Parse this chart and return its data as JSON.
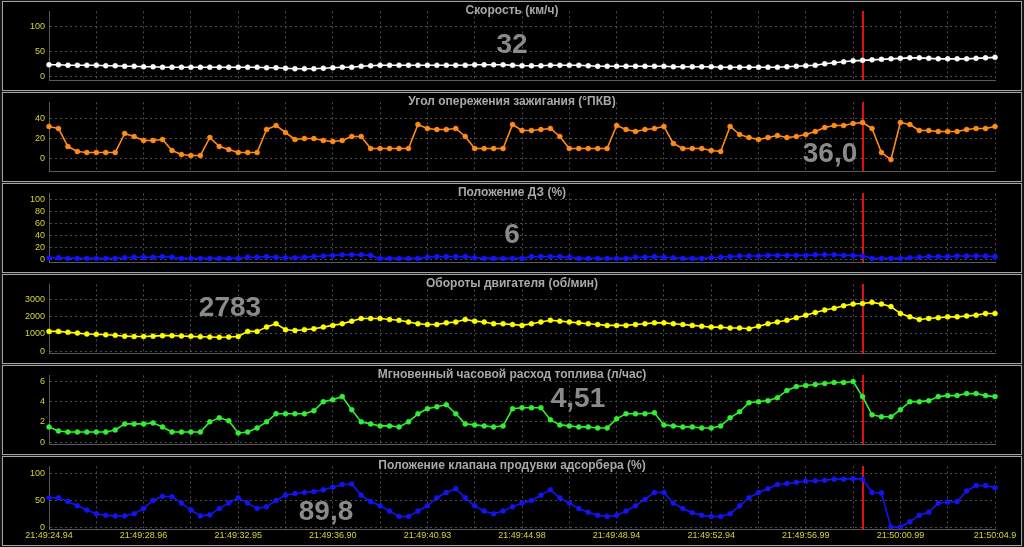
{
  "chart_data": [
    {
      "type": "line",
      "title": "Скорость (км/ч)",
      "annotations": [
        "32"
      ],
      "tick_labels": "y",
      "grid": true,
      "marker": "circle",
      "categories": [
        null,
        null,
        null,
        null,
        null,
        null,
        null,
        null,
        null,
        null,
        null,
        null,
        null,
        null,
        null,
        null,
        null,
        null,
        null,
        null,
        null,
        null,
        null,
        null,
        null,
        null,
        null,
        null,
        null,
        null,
        null,
        null,
        null,
        null,
        null,
        null,
        null,
        null,
        null,
        null,
        null,
        null,
        null,
        null,
        null,
        null,
        null,
        null,
        null,
        null,
        null,
        null,
        null,
        null,
        null,
        null,
        null,
        null,
        null,
        null,
        null,
        null,
        null,
        null,
        null,
        null,
        null,
        null,
        null,
        null,
        null,
        null,
        null,
        null,
        null,
        null,
        null,
        null,
        null,
        null,
        null,
        null,
        null,
        null,
        null,
        null,
        null,
        null,
        null,
        null,
        null,
        null,
        null,
        null,
        null,
        null,
        null,
        null,
        null,
        null,
        null
      ],
      "ylim": [
        -9,
        131
      ],
      "yticks": [
        0,
        50,
        100
      ],
      "series": [
        {
          "color": "#ffffff",
          "values": [
            23,
            23,
            22,
            22,
            22,
            22,
            21,
            21,
            20,
            20,
            19,
            19,
            18,
            18,
            18,
            18,
            18,
            18,
            18,
            18,
            18,
            18,
            18,
            17,
            17,
            16,
            15,
            15,
            15,
            16,
            17,
            18,
            18,
            20,
            21,
            22,
            22,
            22,
            22,
            22,
            22,
            22,
            22,
            22,
            22,
            23,
            23,
            23,
            23,
            22,
            21,
            21,
            21,
            22,
            22,
            22,
            22,
            21,
            20,
            20,
            20,
            20,
            20,
            20,
            20,
            20,
            19,
            19,
            19,
            19,
            19,
            18,
            18,
            18,
            18,
            18,
            18,
            18,
            19,
            20,
            21,
            22,
            25,
            27,
            29,
            31,
            32,
            33,
            34,
            35,
            36,
            37,
            37,
            36,
            35,
            35,
            35,
            35,
            36,
            37,
            38
          ]
        }
      ]
    },
    {
      "type": "line",
      "title": "Угол опережения зажигания (°ПКВ)",
      "annotations": [
        "36,0"
      ],
      "tick_labels": "y",
      "grid": true,
      "marker": "circle",
      "categories": [
        null,
        null,
        null,
        null,
        null,
        null,
        null,
        null,
        null,
        null,
        null,
        null,
        null,
        null,
        null,
        null,
        null,
        null,
        null,
        null,
        null,
        null,
        null,
        null,
        null,
        null,
        null,
        null,
        null,
        null,
        null,
        null,
        null,
        null,
        null,
        null,
        null,
        null,
        null,
        null,
        null,
        null,
        null,
        null,
        null,
        null,
        null,
        null,
        null,
        null,
        null,
        null,
        null,
        null,
        null,
        null,
        null,
        null,
        null,
        null,
        null,
        null,
        null,
        null,
        null,
        null,
        null,
        null,
        null,
        null,
        null,
        null,
        null,
        null,
        null,
        null,
        null,
        null,
        null,
        null,
        null,
        null,
        null,
        null,
        null,
        null,
        null,
        null,
        null,
        null,
        null,
        null,
        null,
        null,
        null,
        null,
        null,
        null,
        null,
        null,
        null
      ],
      "ylim": [
        -13,
        56
      ],
      "yticks": [
        0,
        20,
        40
      ],
      "series": [
        {
          "color": "#ff8c1a",
          "values": [
            32,
            30,
            12,
            7,
            6,
            6,
            6,
            6,
            25,
            22,
            18,
            18,
            19,
            8,
            4,
            3,
            3,
            21,
            12,
            9,
            6,
            6,
            6,
            29,
            33,
            26,
            19,
            20,
            20,
            18,
            17,
            18,
            22,
            22,
            10,
            10,
            10,
            10,
            10,
            34,
            30,
            29,
            29,
            30,
            22,
            10,
            10,
            10,
            10,
            34,
            28,
            28,
            29,
            30,
            22,
            10,
            10,
            10,
            10,
            10,
            33,
            29,
            27,
            29,
            30,
            32,
            15,
            10,
            10,
            10,
            8,
            7,
            32,
            24,
            21,
            19,
            21,
            23,
            21,
            22,
            24,
            27,
            31,
            33,
            33,
            35,
            36,
            30,
            6,
            -1,
            36,
            34,
            28,
            28,
            27,
            27,
            27,
            29,
            30,
            30,
            32
          ]
        }
      ]
    },
    {
      "type": "line",
      "title": "Положение ДЗ (%)",
      "annotations": [
        "6"
      ],
      "tick_labels": "y",
      "grid": true,
      "marker": "circle",
      "categories": [
        null,
        null,
        null,
        null,
        null,
        null,
        null,
        null,
        null,
        null,
        null,
        null,
        null,
        null,
        null,
        null,
        null,
        null,
        null,
        null,
        null,
        null,
        null,
        null,
        null,
        null,
        null,
        null,
        null,
        null,
        null,
        null,
        null,
        null,
        null,
        null,
        null,
        null,
        null,
        null,
        null,
        null,
        null,
        null,
        null,
        null,
        null,
        null,
        null,
        null,
        null,
        null,
        null,
        null,
        null,
        null,
        null,
        null,
        null,
        null,
        null,
        null,
        null,
        null,
        null,
        null,
        null,
        null,
        null,
        null,
        null,
        null,
        null,
        null,
        null,
        null,
        null,
        null,
        null,
        null,
        null,
        null,
        null,
        null,
        null,
        null,
        null,
        null,
        null,
        null,
        null,
        null,
        null,
        null,
        null,
        null,
        null,
        null,
        null,
        null,
        null
      ],
      "ylim": [
        -5,
        110
      ],
      "yticks": [
        0,
        20,
        40,
        60,
        80,
        100
      ],
      "series": [
        {
          "color": "#1414ff",
          "values": [
            3,
            3,
            2,
            2,
            2,
            2,
            2,
            2,
            3,
            4,
            4,
            4,
            5,
            4,
            2,
            2,
            2,
            2,
            2,
            2,
            2,
            4,
            4,
            5,
            4,
            3,
            3,
            4,
            5,
            6,
            7,
            8,
            8,
            8,
            7,
            2,
            2,
            2,
            2,
            2,
            4,
            5,
            5,
            5,
            5,
            3,
            2,
            2,
            2,
            2,
            2,
            5,
            5,
            5,
            5,
            4,
            2,
            2,
            2,
            2,
            2,
            2,
            4,
            4,
            5,
            4,
            3,
            2,
            2,
            2,
            3,
            4,
            5,
            6,
            6,
            6,
            7,
            7,
            7,
            7,
            7,
            8,
            8,
            8,
            7,
            7,
            6,
            2,
            2,
            2,
            2,
            3,
            4,
            5,
            5,
            5,
            6,
            6,
            6,
            6,
            5
          ]
        }
      ]
    },
    {
      "type": "line",
      "title": "Обороты двигателя (об/мин)",
      "annotations": [
        "2783"
      ],
      "tick_labels": "y",
      "grid": true,
      "marker": "circle",
      "categories": [
        null,
        null,
        null,
        null,
        null,
        null,
        null,
        null,
        null,
        null,
        null,
        null,
        null,
        null,
        null,
        null,
        null,
        null,
        null,
        null,
        null,
        null,
        null,
        null,
        null,
        null,
        null,
        null,
        null,
        null,
        null,
        null,
        null,
        null,
        null,
        null,
        null,
        null,
        null,
        null,
        null,
        null,
        null,
        null,
        null,
        null,
        null,
        null,
        null,
        null,
        null,
        null,
        null,
        null,
        null,
        null,
        null,
        null,
        null,
        null,
        null,
        null,
        null,
        null,
        null,
        null,
        null,
        null,
        null,
        null,
        null,
        null,
        null,
        null,
        null,
        null,
        null,
        null,
        null,
        null,
        null,
        null,
        null,
        null,
        null,
        null,
        null,
        null,
        null,
        null,
        null,
        null,
        null,
        null,
        null,
        null,
        null,
        null,
        null,
        null,
        null
      ],
      "ylim": [
        -150,
        3900
      ],
      "yticks": [
        0,
        1000,
        2000,
        3000
      ],
      "series": [
        {
          "color": "#ffff00",
          "values": [
            1150,
            1150,
            1100,
            1050,
            1000,
            980,
            950,
            920,
            870,
            850,
            850,
            870,
            900,
            900,
            880,
            860,
            840,
            820,
            810,
            820,
            850,
            1150,
            1150,
            1400,
            1600,
            1250,
            1200,
            1250,
            1300,
            1400,
            1500,
            1600,
            1750,
            1900,
            1900,
            1900,
            1850,
            1800,
            1700,
            1600,
            1550,
            1550,
            1650,
            1700,
            1850,
            1750,
            1700,
            1600,
            1600,
            1550,
            1500,
            1600,
            1700,
            1800,
            1750,
            1700,
            1650,
            1600,
            1550,
            1500,
            1500,
            1500,
            1550,
            1600,
            1650,
            1650,
            1600,
            1550,
            1500,
            1450,
            1400,
            1400,
            1350,
            1350,
            1300,
            1450,
            1600,
            1700,
            1800,
            1950,
            2100,
            2250,
            2400,
            2500,
            2650,
            2750,
            2780,
            2850,
            2750,
            2600,
            2200,
            2000,
            1850,
            1900,
            1950,
            2000,
            2000,
            2050,
            2100,
            2200,
            2200
          ]
        }
      ]
    },
    {
      "type": "line",
      "title": "Мгновенный часовой расход топлива (л/час)",
      "annotations": [
        "4,51"
      ],
      "tick_labels": "y",
      "grid": true,
      "marker": "circle",
      "categories": [
        null,
        null,
        null,
        null,
        null,
        null,
        null,
        null,
        null,
        null,
        null,
        null,
        null,
        null,
        null,
        null,
        null,
        null,
        null,
        null,
        null,
        null,
        null,
        null,
        null,
        null,
        null,
        null,
        null,
        null,
        null,
        null,
        null,
        null,
        null,
        null,
        null,
        null,
        null,
        null,
        null,
        null,
        null,
        null,
        null,
        null,
        null,
        null,
        null,
        null,
        null,
        null,
        null,
        null,
        null,
        null,
        null,
        null,
        null,
        null,
        null,
        null,
        null,
        null,
        null,
        null,
        null,
        null,
        null,
        null,
        null,
        null,
        null,
        null,
        null,
        null,
        null,
        null,
        null,
        null,
        null,
        null,
        null,
        null,
        null,
        null,
        null,
        null,
        null,
        null,
        null,
        null,
        null,
        null,
        null,
        null,
        null,
        null,
        null,
        null,
        null
      ],
      "ylim": [
        -0.25,
        6.6
      ],
      "yticks": [
        0,
        2,
        4,
        6
      ],
      "series": [
        {
          "color": "#33ee33",
          "values": [
            1.5,
            1.1,
            1.0,
            1.0,
            1.0,
            1.0,
            1.0,
            1.2,
            1.8,
            1.8,
            1.8,
            1.9,
            1.5,
            1.0,
            1.0,
            1.0,
            1.0,
            2.0,
            2.4,
            2.1,
            0.9,
            1.0,
            1.4,
            2.0,
            2.8,
            2.8,
            2.8,
            2.8,
            3.1,
            4.0,
            4.2,
            4.5,
            3.2,
            2.0,
            1.8,
            1.6,
            1.6,
            1.5,
            2.0,
            2.8,
            3.3,
            3.5,
            3.7,
            2.8,
            1.8,
            1.7,
            1.6,
            1.5,
            1.6,
            3.3,
            3.4,
            3.4,
            3.4,
            2.2,
            1.7,
            1.6,
            1.5,
            1.5,
            1.4,
            1.4,
            2.3,
            2.8,
            2.8,
            2.8,
            2.9,
            1.7,
            1.6,
            1.5,
            1.5,
            1.4,
            1.4,
            1.6,
            2.4,
            3.0,
            3.9,
            4.0,
            4.1,
            4.4,
            5.1,
            5.5,
            5.6,
            5.7,
            5.8,
            5.9,
            5.9,
            6.0,
            4.5,
            2.7,
            2.5,
            2.5,
            3.2,
            4.0,
            4.0,
            4.1,
            4.5,
            4.6,
            4.6,
            4.8,
            4.8,
            4.6,
            4.5
          ]
        }
      ]
    },
    {
      "type": "line",
      "title": "Положение клапана продувки адсорбера (%)",
      "annotations": [
        "89,8"
      ],
      "grid": true,
      "marker": "circle",
      "categories": [
        "21:49:24.94",
        null,
        null,
        null,
        null,
        null,
        null,
        null,
        null,
        null,
        "21:49:28.96",
        null,
        null,
        null,
        null,
        null,
        null,
        null,
        null,
        null,
        "21:49:32.95",
        null,
        null,
        null,
        null,
        null,
        null,
        null,
        null,
        null,
        "21:49:36.90",
        null,
        null,
        null,
        null,
        null,
        null,
        null,
        null,
        null,
        "21:49:40.93",
        null,
        null,
        null,
        null,
        null,
        null,
        null,
        null,
        null,
        "21:49:44.98",
        null,
        null,
        null,
        null,
        null,
        null,
        null,
        null,
        null,
        "21:49:48.94",
        null,
        null,
        null,
        null,
        null,
        null,
        null,
        null,
        null,
        "21:49:52.94",
        null,
        null,
        null,
        null,
        null,
        null,
        null,
        null,
        null,
        "21:49:56.99",
        null,
        null,
        null,
        null,
        null,
        null,
        null,
        null,
        null,
        "21:50:00.99",
        null,
        null,
        null,
        null,
        null,
        null,
        null,
        null,
        null,
        "21:50:04.9"
      ],
      "ylim": [
        -4,
        114
      ],
      "yticks": [
        0,
        50,
        100
      ],
      "series": [
        {
          "color": "#1414ee",
          "values": [
            55,
            55,
            48,
            40,
            32,
            25,
            22,
            21,
            21,
            25,
            35,
            50,
            58,
            57,
            45,
            32,
            21,
            23,
            35,
            45,
            55,
            45,
            35,
            38,
            50,
            60,
            63,
            65,
            67,
            70,
            75,
            80,
            81,
            60,
            48,
            40,
            30,
            20,
            20,
            30,
            40,
            55,
            65,
            72,
            55,
            40,
            30,
            25,
            30,
            38,
            45,
            50,
            60,
            70,
            55,
            45,
            35,
            28,
            22,
            20,
            22,
            30,
            40,
            52,
            65,
            65,
            45,
            35,
            27,
            22,
            20,
            20,
            25,
            40,
            55,
            65,
            72,
            80,
            82,
            84,
            86,
            87,
            88,
            90,
            90,
            91,
            90,
            65,
            64,
            0,
            0,
            10,
            22,
            28,
            45,
            47,
            48,
            68,
            78,
            78,
            74
          ]
        }
      ]
    }
  ]
}
